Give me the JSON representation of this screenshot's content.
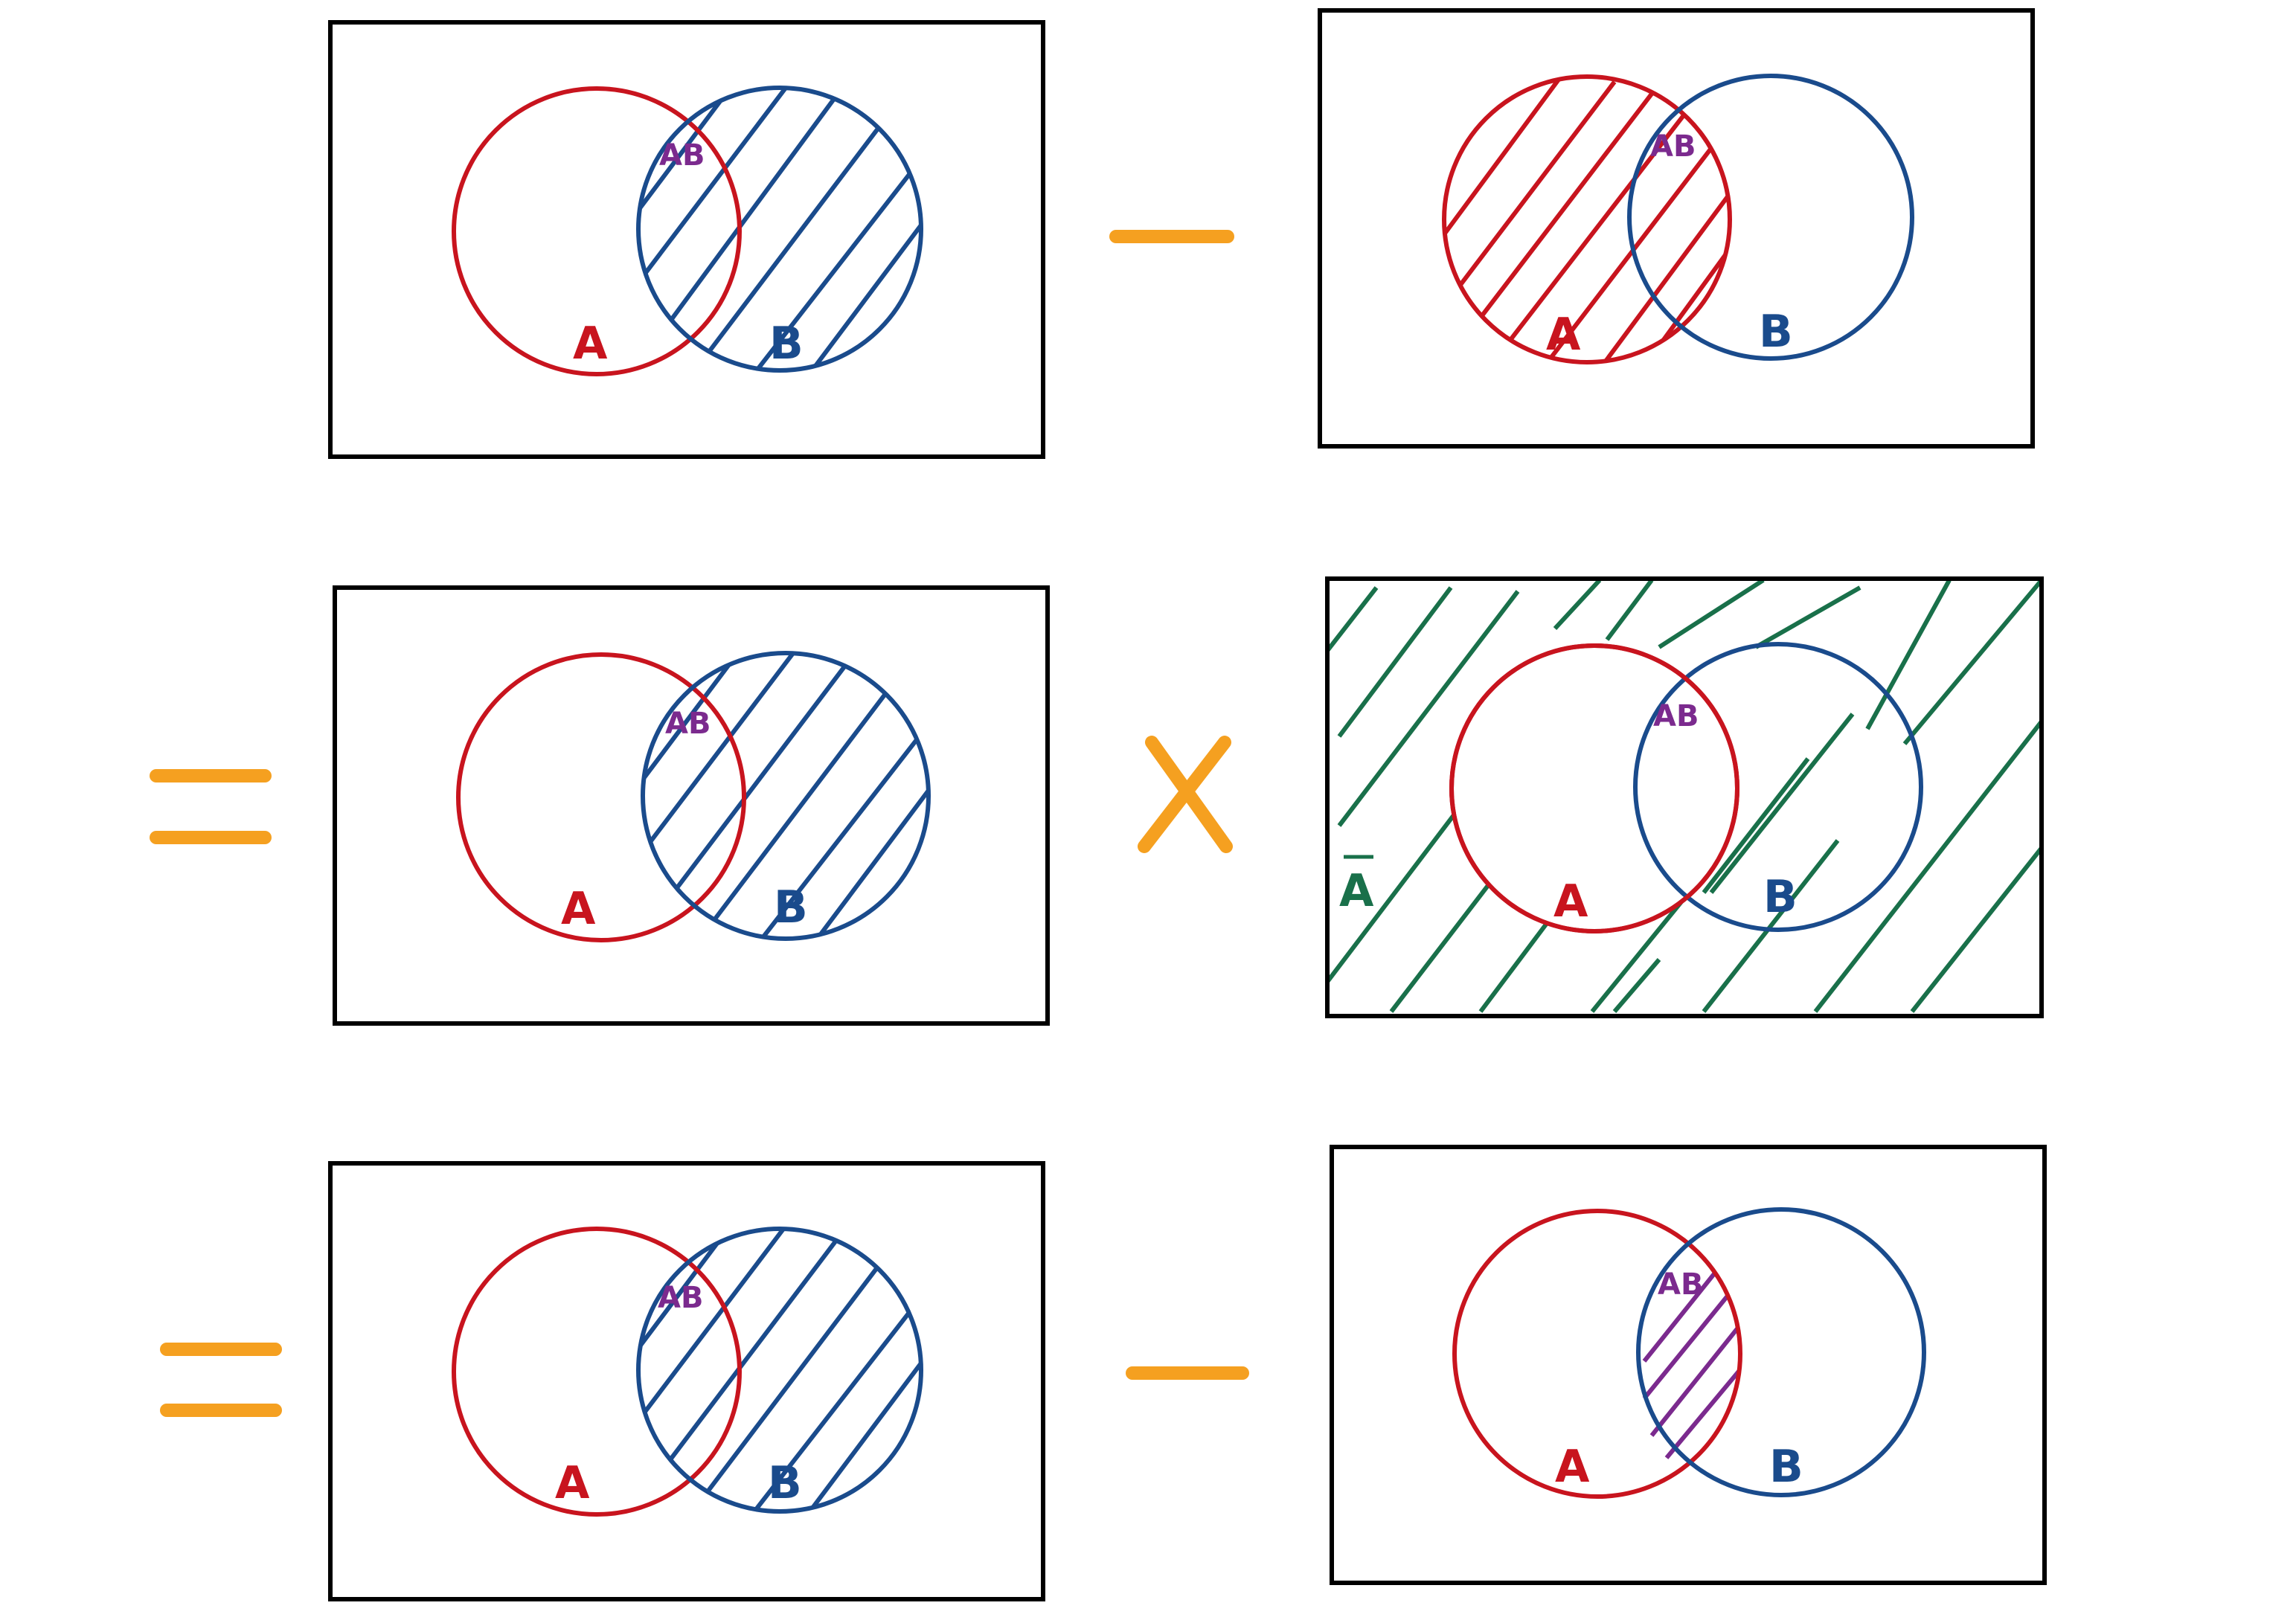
{
  "colors": {
    "set_a": "#c8141e",
    "set_b": "#1a4b8c",
    "intersection": "#7b2a8e",
    "complement": "#19704a",
    "operator": "#f5a020",
    "frame": "#000000",
    "background": "#ffffff"
  },
  "labels": {
    "set_a": "A",
    "set_b": "B",
    "intersection": "AB",
    "complement": "A"
  },
  "operators": {
    "minus": "minus-sign",
    "equals": "equals-sign",
    "times": "multiplication-sign"
  },
  "diagrams": [
    {
      "id": "row1-left",
      "shaded_region": "B"
    },
    {
      "id": "row1-right",
      "shaded_region": "A"
    },
    {
      "id": "row2-left",
      "shaded_region": "B"
    },
    {
      "id": "row2-right",
      "shaded_region": "complement-of-A"
    },
    {
      "id": "row3-left",
      "shaded_region": "B"
    },
    {
      "id": "row3-right",
      "shaded_region": "A-and-B"
    }
  ]
}
